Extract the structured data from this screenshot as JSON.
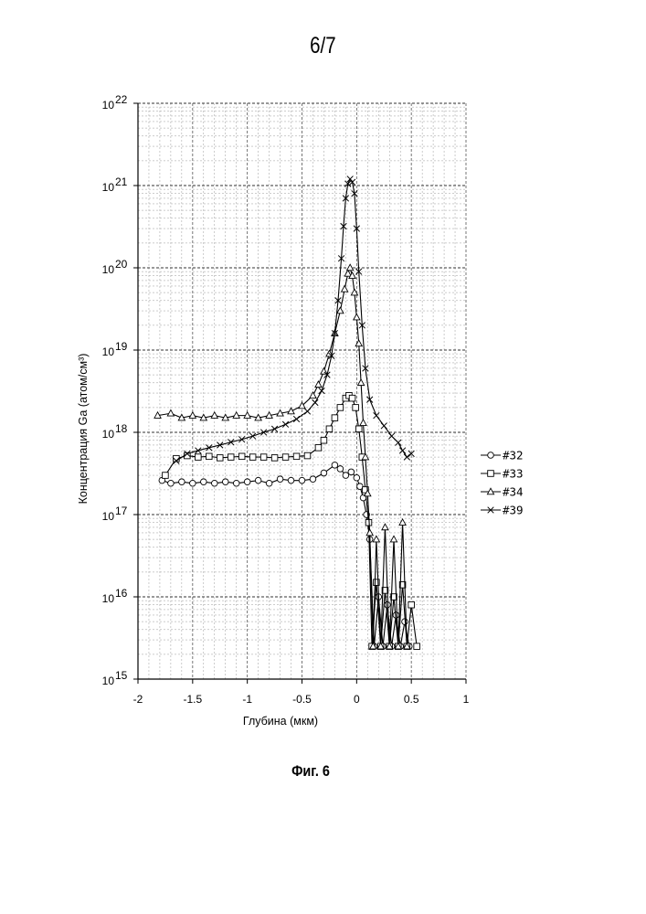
{
  "page": {
    "number": "6/7",
    "caption": "Фиг. 6"
  },
  "chart_data": {
    "type": "scatter",
    "xlabel": "Глубина (мкм)",
    "ylabel": "Концентрация Ga (атом/см³)",
    "xlim": [
      -2,
      1
    ],
    "ylim": [
      1000000000000000.0,
      1e+22
    ],
    "yscale": "log",
    "grid": true,
    "legend_position": "right",
    "xticks": [
      -2,
      -1.5,
      -1,
      -0.5,
      0,
      0.5,
      1
    ],
    "xtick_labels": [
      "-2",
      "-1.5",
      "-1",
      "-0.5",
      "0",
      "0.5",
      "1"
    ],
    "yticks": [
      {
        "base": "10",
        "exp": "15"
      },
      {
        "base": "10",
        "exp": "16"
      },
      {
        "base": "10",
        "exp": "17"
      },
      {
        "base": "10",
        "exp": "18"
      },
      {
        "base": "10",
        "exp": "19"
      },
      {
        "base": "10",
        "exp": "20"
      },
      {
        "base": "10",
        "exp": "21"
      },
      {
        "base": "10",
        "exp": "22"
      }
    ],
    "series": [
      {
        "name": "#32",
        "marker": "circle",
        "points": [
          [
            -1.78,
            2.6e+17
          ],
          [
            -1.7,
            2.4e+17
          ],
          [
            -1.6,
            2.5e+17
          ],
          [
            -1.5,
            2.4e+17
          ],
          [
            -1.4,
            2.5e+17
          ],
          [
            -1.3,
            2.4e+17
          ],
          [
            -1.2,
            2.5e+17
          ],
          [
            -1.1,
            2.4e+17
          ],
          [
            -1.0,
            2.5e+17
          ],
          [
            -0.9,
            2.6e+17
          ],
          [
            -0.8,
            2.4e+17
          ],
          [
            -0.7,
            2.7e+17
          ],
          [
            -0.6,
            2.6e+17
          ],
          [
            -0.5,
            2.6e+17
          ],
          [
            -0.4,
            2.7e+17
          ],
          [
            -0.3,
            3.2e+17
          ],
          [
            -0.2,
            4e+17
          ],
          [
            -0.15,
            3.6e+17
          ],
          [
            -0.1,
            3e+17
          ],
          [
            -0.05,
            3.3e+17
          ],
          [
            0.0,
            2.8e+17
          ],
          [
            0.03,
            2.2e+17
          ],
          [
            0.06,
            1.6e+17
          ],
          [
            0.09,
            1e+17
          ],
          [
            0.12,
            5e+16
          ],
          [
            0.16,
            2500000000000000.0
          ],
          [
            0.2,
            1e+16
          ],
          [
            0.24,
            2500000000000000.0
          ],
          [
            0.28,
            8000000000000000.0
          ],
          [
            0.32,
            2500000000000000.0
          ],
          [
            0.36,
            6000000000000000.0
          ],
          [
            0.4,
            2500000000000000.0
          ],
          [
            0.44,
            5000000000000000.0
          ],
          [
            0.48,
            2500000000000000.0
          ]
        ]
      },
      {
        "name": "#33",
        "marker": "square",
        "points": [
          [
            -1.75,
            3e+17
          ],
          [
            -1.65,
            4.8e+17
          ],
          [
            -1.55,
            5.2e+17
          ],
          [
            -1.45,
            5e+17
          ],
          [
            -1.35,
            5.1e+17
          ],
          [
            -1.25,
            4.9e+17
          ],
          [
            -1.15,
            5e+17
          ],
          [
            -1.05,
            5.1e+17
          ],
          [
            -0.95,
            5e+17
          ],
          [
            -0.85,
            5e+17
          ],
          [
            -0.75,
            4.9e+17
          ],
          [
            -0.65,
            5e+17
          ],
          [
            -0.55,
            5.1e+17
          ],
          [
            -0.45,
            5.2e+17
          ],
          [
            -0.35,
            6.5e+17
          ],
          [
            -0.3,
            8e+17
          ],
          [
            -0.25,
            1.1e+18
          ],
          [
            -0.2,
            1.5e+18
          ],
          [
            -0.15,
            2e+18
          ],
          [
            -0.1,
            2.6e+18
          ],
          [
            -0.07,
            2.8e+18
          ],
          [
            -0.04,
            2.6e+18
          ],
          [
            -0.01,
            2e+18
          ],
          [
            0.02,
            1.1e+18
          ],
          [
            0.05,
            5e+17
          ],
          [
            0.08,
            2e+17
          ],
          [
            0.11,
            8e+16
          ],
          [
            0.14,
            2500000000000000.0
          ],
          [
            0.18,
            1.5e+16
          ],
          [
            0.22,
            2500000000000000.0
          ],
          [
            0.26,
            1.2e+16
          ],
          [
            0.3,
            2500000000000000.0
          ],
          [
            0.34,
            1e+16
          ],
          [
            0.38,
            2500000000000000.0
          ],
          [
            0.42,
            1.4e+16
          ],
          [
            0.46,
            2500000000000000.0
          ],
          [
            0.5,
            8000000000000000.0
          ],
          [
            0.55,
            2500000000000000.0
          ]
        ]
      },
      {
        "name": "#34",
        "marker": "triangle",
        "points": [
          [
            -1.82,
            1.6e+18
          ],
          [
            -1.7,
            1.7e+18
          ],
          [
            -1.6,
            1.5e+18
          ],
          [
            -1.5,
            1.6e+18
          ],
          [
            -1.4,
            1.5e+18
          ],
          [
            -1.3,
            1.6e+18
          ],
          [
            -1.2,
            1.5e+18
          ],
          [
            -1.1,
            1.6e+18
          ],
          [
            -1.0,
            1.6e+18
          ],
          [
            -0.9,
            1.5e+18
          ],
          [
            -0.8,
            1.6e+18
          ],
          [
            -0.7,
            1.7e+18
          ],
          [
            -0.6,
            1.8e+18
          ],
          [
            -0.5,
            2.1e+18
          ],
          [
            -0.4,
            2.8e+18
          ],
          [
            -0.35,
            3.8e+18
          ],
          [
            -0.3,
            5.5e+18
          ],
          [
            -0.25,
            9e+18
          ],
          [
            -0.2,
            1.6e+19
          ],
          [
            -0.15,
            3e+19
          ],
          [
            -0.11,
            5.5e+19
          ],
          [
            -0.08,
            8.5e+19
          ],
          [
            -0.06,
            1e+20
          ],
          [
            -0.04,
            8e+19
          ],
          [
            -0.02,
            5e+19
          ],
          [
            0.0,
            2.5e+19
          ],
          [
            0.02,
            1.2e+19
          ],
          [
            0.04,
            4e+18
          ],
          [
            0.06,
            1.3e+18
          ],
          [
            0.08,
            5e+17
          ],
          [
            0.1,
            1.8e+17
          ],
          [
            0.12,
            6e+16
          ],
          [
            0.15,
            2500000000000000.0
          ],
          [
            0.18,
            5e+16
          ],
          [
            0.22,
            2500000000000000.0
          ],
          [
            0.26,
            7e+16
          ],
          [
            0.3,
            2500000000000000.0
          ],
          [
            0.34,
            5e+16
          ],
          [
            0.38,
            2500000000000000.0
          ],
          [
            0.42,
            8e+16
          ],
          [
            0.46,
            2500000000000000.0
          ]
        ]
      },
      {
        "name": "#39",
        "marker": "x",
        "points": [
          [
            -1.65,
            4.5e+17
          ],
          [
            -1.55,
            5.5e+17
          ],
          [
            -1.45,
            6e+17
          ],
          [
            -1.35,
            6.5e+17
          ],
          [
            -1.25,
            7e+17
          ],
          [
            -1.15,
            7.6e+17
          ],
          [
            -1.05,
            8.2e+17
          ],
          [
            -0.95,
            9e+17
          ],
          [
            -0.85,
            1e+18
          ],
          [
            -0.75,
            1.1e+18
          ],
          [
            -0.65,
            1.25e+18
          ],
          [
            -0.55,
            1.45e+18
          ],
          [
            -0.45,
            1.8e+18
          ],
          [
            -0.38,
            2.3e+18
          ],
          [
            -0.32,
            3.2e+18
          ],
          [
            -0.27,
            5e+18
          ],
          [
            -0.23,
            8.5e+18
          ],
          [
            -0.2,
            1.6e+19
          ],
          [
            -0.17,
            4e+19
          ],
          [
            -0.14,
            1.3e+20
          ],
          [
            -0.12,
            3.2e+20
          ],
          [
            -0.1,
            7e+20
          ],
          [
            -0.08,
            1.05e+21
          ],
          [
            -0.06,
            1.2e+21
          ],
          [
            -0.04,
            1.1e+21
          ],
          [
            -0.02,
            8e+20
          ],
          [
            0.0,
            3e+20
          ],
          [
            0.02,
            9e+19
          ],
          [
            0.05,
            2e+19
          ],
          [
            0.08,
            6e+18
          ],
          [
            0.12,
            2.5e+18
          ],
          [
            0.18,
            1.6e+18
          ],
          [
            0.25,
            1.2e+18
          ],
          [
            0.32,
            9e+17
          ],
          [
            0.38,
            7.5e+17
          ],
          [
            0.42,
            6e+17
          ],
          [
            0.46,
            5e+17
          ],
          [
            0.5,
            5.5e+17
          ]
        ]
      }
    ]
  }
}
